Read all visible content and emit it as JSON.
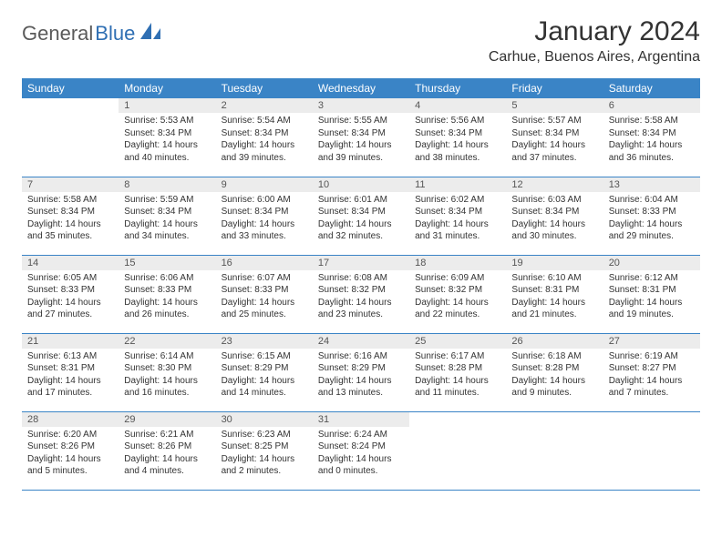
{
  "logo": {
    "text1": "General",
    "text2": "Blue"
  },
  "title": "January 2024",
  "location": "Carhue, Buenos Aires, Argentina",
  "colors": {
    "header_bg": "#3a84c6",
    "header_text": "#ffffff",
    "daynum_bg": "#ececec",
    "daynum_text": "#555555",
    "body_text": "#333333",
    "rule": "#3a84c6",
    "logo_gray": "#5a5a5a",
    "logo_blue": "#2f6fb3"
  },
  "weekdays": [
    "Sunday",
    "Monday",
    "Tuesday",
    "Wednesday",
    "Thursday",
    "Friday",
    "Saturday"
  ],
  "weeks": [
    [
      null,
      {
        "n": "1",
        "sr": "Sunrise: 5:53 AM",
        "ss": "Sunset: 8:34 PM",
        "d1": "Daylight: 14 hours",
        "d2": "and 40 minutes."
      },
      {
        "n": "2",
        "sr": "Sunrise: 5:54 AM",
        "ss": "Sunset: 8:34 PM",
        "d1": "Daylight: 14 hours",
        "d2": "and 39 minutes."
      },
      {
        "n": "3",
        "sr": "Sunrise: 5:55 AM",
        "ss": "Sunset: 8:34 PM",
        "d1": "Daylight: 14 hours",
        "d2": "and 39 minutes."
      },
      {
        "n": "4",
        "sr": "Sunrise: 5:56 AM",
        "ss": "Sunset: 8:34 PM",
        "d1": "Daylight: 14 hours",
        "d2": "and 38 minutes."
      },
      {
        "n": "5",
        "sr": "Sunrise: 5:57 AM",
        "ss": "Sunset: 8:34 PM",
        "d1": "Daylight: 14 hours",
        "d2": "and 37 minutes."
      },
      {
        "n": "6",
        "sr": "Sunrise: 5:58 AM",
        "ss": "Sunset: 8:34 PM",
        "d1": "Daylight: 14 hours",
        "d2": "and 36 minutes."
      }
    ],
    [
      {
        "n": "7",
        "sr": "Sunrise: 5:58 AM",
        "ss": "Sunset: 8:34 PM",
        "d1": "Daylight: 14 hours",
        "d2": "and 35 minutes."
      },
      {
        "n": "8",
        "sr": "Sunrise: 5:59 AM",
        "ss": "Sunset: 8:34 PM",
        "d1": "Daylight: 14 hours",
        "d2": "and 34 minutes."
      },
      {
        "n": "9",
        "sr": "Sunrise: 6:00 AM",
        "ss": "Sunset: 8:34 PM",
        "d1": "Daylight: 14 hours",
        "d2": "and 33 minutes."
      },
      {
        "n": "10",
        "sr": "Sunrise: 6:01 AM",
        "ss": "Sunset: 8:34 PM",
        "d1": "Daylight: 14 hours",
        "d2": "and 32 minutes."
      },
      {
        "n": "11",
        "sr": "Sunrise: 6:02 AM",
        "ss": "Sunset: 8:34 PM",
        "d1": "Daylight: 14 hours",
        "d2": "and 31 minutes."
      },
      {
        "n": "12",
        "sr": "Sunrise: 6:03 AM",
        "ss": "Sunset: 8:34 PM",
        "d1": "Daylight: 14 hours",
        "d2": "and 30 minutes."
      },
      {
        "n": "13",
        "sr": "Sunrise: 6:04 AM",
        "ss": "Sunset: 8:33 PM",
        "d1": "Daylight: 14 hours",
        "d2": "and 29 minutes."
      }
    ],
    [
      {
        "n": "14",
        "sr": "Sunrise: 6:05 AM",
        "ss": "Sunset: 8:33 PM",
        "d1": "Daylight: 14 hours",
        "d2": "and 27 minutes."
      },
      {
        "n": "15",
        "sr": "Sunrise: 6:06 AM",
        "ss": "Sunset: 8:33 PM",
        "d1": "Daylight: 14 hours",
        "d2": "and 26 minutes."
      },
      {
        "n": "16",
        "sr": "Sunrise: 6:07 AM",
        "ss": "Sunset: 8:33 PM",
        "d1": "Daylight: 14 hours",
        "d2": "and 25 minutes."
      },
      {
        "n": "17",
        "sr": "Sunrise: 6:08 AM",
        "ss": "Sunset: 8:32 PM",
        "d1": "Daylight: 14 hours",
        "d2": "and 23 minutes."
      },
      {
        "n": "18",
        "sr": "Sunrise: 6:09 AM",
        "ss": "Sunset: 8:32 PM",
        "d1": "Daylight: 14 hours",
        "d2": "and 22 minutes."
      },
      {
        "n": "19",
        "sr": "Sunrise: 6:10 AM",
        "ss": "Sunset: 8:31 PM",
        "d1": "Daylight: 14 hours",
        "d2": "and 21 minutes."
      },
      {
        "n": "20",
        "sr": "Sunrise: 6:12 AM",
        "ss": "Sunset: 8:31 PM",
        "d1": "Daylight: 14 hours",
        "d2": "and 19 minutes."
      }
    ],
    [
      {
        "n": "21",
        "sr": "Sunrise: 6:13 AM",
        "ss": "Sunset: 8:31 PM",
        "d1": "Daylight: 14 hours",
        "d2": "and 17 minutes."
      },
      {
        "n": "22",
        "sr": "Sunrise: 6:14 AM",
        "ss": "Sunset: 8:30 PM",
        "d1": "Daylight: 14 hours",
        "d2": "and 16 minutes."
      },
      {
        "n": "23",
        "sr": "Sunrise: 6:15 AM",
        "ss": "Sunset: 8:29 PM",
        "d1": "Daylight: 14 hours",
        "d2": "and 14 minutes."
      },
      {
        "n": "24",
        "sr": "Sunrise: 6:16 AM",
        "ss": "Sunset: 8:29 PM",
        "d1": "Daylight: 14 hours",
        "d2": "and 13 minutes."
      },
      {
        "n": "25",
        "sr": "Sunrise: 6:17 AM",
        "ss": "Sunset: 8:28 PM",
        "d1": "Daylight: 14 hours",
        "d2": "and 11 minutes."
      },
      {
        "n": "26",
        "sr": "Sunrise: 6:18 AM",
        "ss": "Sunset: 8:28 PM",
        "d1": "Daylight: 14 hours",
        "d2": "and 9 minutes."
      },
      {
        "n": "27",
        "sr": "Sunrise: 6:19 AM",
        "ss": "Sunset: 8:27 PM",
        "d1": "Daylight: 14 hours",
        "d2": "and 7 minutes."
      }
    ],
    [
      {
        "n": "28",
        "sr": "Sunrise: 6:20 AM",
        "ss": "Sunset: 8:26 PM",
        "d1": "Daylight: 14 hours",
        "d2": "and 5 minutes."
      },
      {
        "n": "29",
        "sr": "Sunrise: 6:21 AM",
        "ss": "Sunset: 8:26 PM",
        "d1": "Daylight: 14 hours",
        "d2": "and 4 minutes."
      },
      {
        "n": "30",
        "sr": "Sunrise: 6:23 AM",
        "ss": "Sunset: 8:25 PM",
        "d1": "Daylight: 14 hours",
        "d2": "and 2 minutes."
      },
      {
        "n": "31",
        "sr": "Sunrise: 6:24 AM",
        "ss": "Sunset: 8:24 PM",
        "d1": "Daylight: 14 hours",
        "d2": "and 0 minutes."
      },
      null,
      null,
      null
    ]
  ]
}
